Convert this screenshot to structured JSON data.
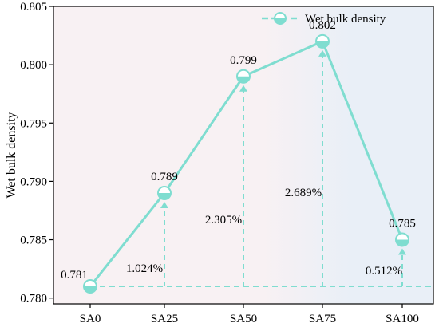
{
  "chart_data": {
    "type": "line",
    "categories": [
      "SA0",
      "SA25",
      "SA50",
      "SA75",
      "SA100"
    ],
    "series": [
      {
        "name": "Wet bulk density",
        "values": [
          0.781,
          0.789,
          0.799,
          0.802,
          0.785
        ]
      }
    ],
    "data_labels": [
      "0.781",
      "0.789",
      "0.799",
      "0.802",
      "0.785"
    ],
    "ylabel": "Wet bulk density",
    "xlabel": "",
    "ylim": [
      0.7795,
      0.805
    ],
    "yticks": [
      0.78,
      0.785,
      0.79,
      0.795,
      0.8,
      0.805
    ],
    "ytick_labels": [
      "0.780",
      "0.785",
      "0.790",
      "0.795",
      "0.800",
      "0.805"
    ],
    "baseline": 0.781,
    "increases": [
      {
        "category": "SA25",
        "label": "1.024%"
      },
      {
        "category": "SA50",
        "label": "2.305%"
      },
      {
        "category": "SA75",
        "label": "2.689%"
      },
      {
        "category": "SA100",
        "label": "0.512%"
      }
    ],
    "legend": {
      "position": "top-right"
    },
    "grid": false,
    "colors": {
      "line": "#7fddd0",
      "marker_fill": "#ffffff",
      "marker_half": "#7fddd0",
      "background_left": "#f8f1f3",
      "background_right": "#e9eff7"
    }
  }
}
